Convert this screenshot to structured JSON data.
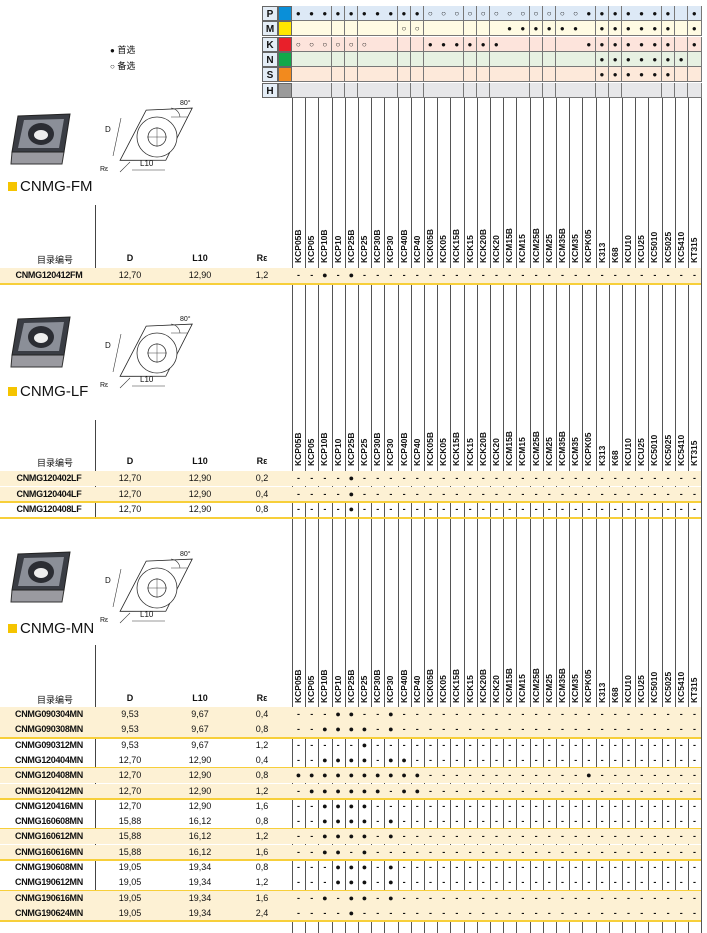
{
  "legend": {
    "primary_symbol": "●",
    "primary_label": "首选",
    "alternate_symbol": "○",
    "alternate_label": "备选"
  },
  "grades": [
    "KCP05B",
    "KCP05",
    "KCP10B",
    "KCP10",
    "KCP25B",
    "KCP25",
    "KCP30B",
    "KCP30",
    "KCP40B",
    "KCP40",
    "KCK05B",
    "KCK05",
    "KCK15B",
    "KCK15",
    "KCK20B",
    "KCK20",
    "KCM15B",
    "KCM15",
    "KCM25B",
    "KCM25",
    "KCM35B",
    "KCM35",
    "KCPK05",
    "K313",
    "K68",
    "KCU10",
    "KCU25",
    "KC5010",
    "KC5025",
    "KC5410",
    "KT315"
  ],
  "materials": [
    {
      "letter": "P",
      "color": "#0a8fd8",
      "bg": "#dde9f6",
      "primary": [
        1,
        2,
        3,
        4,
        5,
        6,
        7,
        8,
        9,
        10,
        23,
        24,
        25,
        26,
        27,
        28,
        29,
        31
      ],
      "alternate": [
        11,
        12,
        13,
        14,
        15,
        16,
        17,
        18,
        19,
        20,
        21,
        22
      ]
    },
    {
      "letter": "M",
      "color": "#ffe600",
      "bg": "#fffbe3",
      "primary": [
        17,
        18,
        19,
        20,
        21,
        22,
        24,
        25,
        26,
        27,
        28,
        29,
        31
      ],
      "alternate": [
        9,
        10
      ]
    },
    {
      "letter": "K",
      "color": "#e8202a",
      "bg": "#fde4dc",
      "primary": [
        11,
        12,
        13,
        14,
        15,
        16,
        23,
        24,
        25,
        26,
        27,
        28,
        29,
        31
      ],
      "alternate": [
        1,
        2,
        3,
        4,
        5,
        6
      ]
    },
    {
      "letter": "N",
      "color": "#11a84a",
      "bg": "#e7f1e2",
      "primary": [
        24,
        25,
        26,
        27,
        28,
        29,
        30
      ],
      "alternate": []
    },
    {
      "letter": "S",
      "color": "#f28a1e",
      "bg": "#fde9da",
      "primary": [
        24,
        25,
        26,
        27,
        28,
        29
      ],
      "alternate": []
    },
    {
      "letter": "H",
      "color": "#9a9a9a",
      "bg": "#e7e7e9",
      "primary": [],
      "alternate": []
    }
  ],
  "table_headers": {
    "code": "目录编号",
    "d": "D",
    "l10": "L10",
    "re": "Rε"
  },
  "diagram": {
    "angle": "80°",
    "d": "D",
    "l10": "L10",
    "re": "Rε"
  },
  "mark": "●",
  "no_mark": "-",
  "sections": [
    {
      "title": "CNMG-FM",
      "rows": [
        {
          "code": "CNMG120412FM",
          "d": "12,70",
          "l10": "12,90",
          "re": "1,2",
          "primary": [
            3,
            5
          ]
        }
      ]
    },
    {
      "title": "CNMG-LF",
      "rows": [
        {
          "code": "CNMG120402LF",
          "d": "12,70",
          "l10": "12,90",
          "re": "0,2",
          "primary": [
            5
          ]
        },
        {
          "code": "CNMG120404LF",
          "d": "12,70",
          "l10": "12,90",
          "re": "0,4",
          "primary": [
            5
          ]
        },
        {
          "code": "CNMG120408LF",
          "d": "12,70",
          "l10": "12,90",
          "re": "0,8",
          "primary": [
            5
          ]
        }
      ]
    },
    {
      "title": "CNMG-MN",
      "rows": [
        {
          "code": "CNMG090304MN",
          "d": "9,53",
          "l10": "9,67",
          "re": "0,4",
          "primary": [
            4,
            5,
            8
          ]
        },
        {
          "code": "CNMG090308MN",
          "d": "9,53",
          "l10": "9,67",
          "re": "0,8",
          "primary": [
            3,
            4,
            5,
            6,
            8
          ]
        },
        {
          "code": "CNMG090312MN",
          "d": "9,53",
          "l10": "9,67",
          "re": "1,2",
          "primary": [
            6
          ]
        },
        {
          "code": "CNMG120404MN",
          "d": "12,70",
          "l10": "12,90",
          "re": "0,4",
          "primary": [
            3,
            4,
            5,
            6,
            8,
            9
          ]
        },
        {
          "code": "CNMG120408MN",
          "d": "12,70",
          "l10": "12,90",
          "re": "0,8",
          "primary": [
            1,
            2,
            3,
            4,
            5,
            6,
            7,
            8,
            9,
            10,
            23
          ]
        },
        {
          "code": "CNMG120412MN",
          "d": "12,70",
          "l10": "12,90",
          "re": "1,2",
          "primary": [
            2,
            3,
            4,
            5,
            6,
            7,
            9,
            10
          ]
        },
        {
          "code": "CNMG120416MN",
          "d": "12,70",
          "l10": "12,90",
          "re": "1,6",
          "primary": [
            3,
            4,
            5,
            6
          ]
        },
        {
          "code": "CNMG160608MN",
          "d": "15,88",
          "l10": "16,12",
          "re": "0,8",
          "primary": [
            3,
            4,
            5,
            6,
            8
          ]
        },
        {
          "code": "CNMG160612MN",
          "d": "15,88",
          "l10": "16,12",
          "re": "1,2",
          "primary": [
            3,
            4,
            5,
            6,
            8
          ]
        },
        {
          "code": "CNMG160616MN",
          "d": "15,88",
          "l10": "16,12",
          "re": "1,6",
          "primary": [
            3,
            4,
            6
          ]
        },
        {
          "code": "CNMG190608MN",
          "d": "19,05",
          "l10": "19,34",
          "re": "0,8",
          "primary": [
            4,
            5,
            6,
            8
          ]
        },
        {
          "code": "CNMG190612MN",
          "d": "19,05",
          "l10": "19,34",
          "re": "1,2",
          "primary": [
            4,
            5,
            6,
            8
          ]
        },
        {
          "code": "CNMG190616MN",
          "d": "19,05",
          "l10": "19,34",
          "re": "1,6",
          "primary": [
            3,
            5,
            6,
            8
          ]
        },
        {
          "code": "CNMG190624MN",
          "d": "19,05",
          "l10": "19,34",
          "re": "2,4",
          "primary": [
            5
          ]
        }
      ]
    }
  ]
}
